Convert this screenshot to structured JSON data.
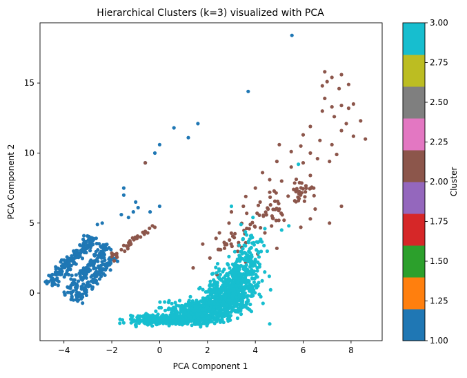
{
  "chart_data": {
    "type": "scatter",
    "title": "Hierarchical Clusters (k=3) visualized with PCA",
    "xlabel": "PCA Component 1",
    "ylabel": "PCA Component 2",
    "xlim": [
      -5.0,
      9.3
    ],
    "ylim": [
      -3.4,
      19.3
    ],
    "xticks": [
      -4,
      -2,
      0,
      2,
      4,
      6,
      8
    ],
    "yticks": [
      0,
      5,
      10,
      15
    ],
    "xtick_labels": [
      "−4",
      "−2",
      "0",
      "2",
      "4",
      "6",
      "8"
    ],
    "ytick_labels": [
      "0",
      "5",
      "10",
      "15"
    ],
    "grid": false,
    "series": [
      {
        "cluster": 1,
        "color": "#1f77b4",
        "points": [
          [
            5.53,
            18.4
          ],
          [
            3.7,
            14.4
          ],
          [
            1.6,
            12.1
          ],
          [
            0.6,
            11.8
          ],
          [
            1.2,
            11.1
          ],
          [
            0.0,
            10.6
          ],
          [
            -0.2,
            10.0
          ],
          [
            -0.6,
            9.3
          ],
          [
            -1.5,
            7.5
          ],
          [
            -1.5,
            7.0
          ],
          [
            -1.0,
            6.5
          ],
          [
            -0.9,
            6.1
          ],
          [
            0.0,
            6.2
          ],
          [
            -1.1,
            5.8
          ],
          [
            -1.6,
            5.6
          ],
          [
            -1.3,
            5.4
          ],
          [
            -0.4,
            5.8
          ],
          [
            -2.4,
            5.0
          ],
          [
            -2.6,
            4.9
          ]
        ],
        "stripes": [
          {
            "from": [
              -4.6,
              0.6
            ],
            "to": [
              -2.8,
              4.0
            ],
            "n": 170,
            "spread": 0.16
          },
          {
            "from": [
              -3.9,
              -0.2
            ],
            "to": [
              -2.2,
              3.5
            ],
            "n": 120,
            "spread": 0.15
          },
          {
            "from": [
              -3.5,
              -0.6
            ],
            "to": [
              -2.0,
              2.6
            ],
            "n": 110,
            "spread": 0.14
          }
        ]
      },
      {
        "cluster": 2,
        "color": "#8c564b",
        "points": [
          [
            6.9,
            15.8
          ],
          [
            7.2,
            15.4
          ],
          [
            7.6,
            15.6
          ],
          [
            7.0,
            15.1
          ],
          [
            6.8,
            14.8
          ],
          [
            7.5,
            14.6
          ],
          [
            7.9,
            14.9
          ],
          [
            6.9,
            13.9
          ],
          [
            7.2,
            13.3
          ],
          [
            6.8,
            13.0
          ],
          [
            7.6,
            13.4
          ],
          [
            7.9,
            13.2
          ],
          [
            8.1,
            13.5
          ],
          [
            7.3,
            12.6
          ],
          [
            7.8,
            12.1
          ],
          [
            8.4,
            12.3
          ],
          [
            6.3,
            11.9
          ],
          [
            7.6,
            11.6
          ],
          [
            8.1,
            11.2
          ],
          [
            8.6,
            11.0
          ],
          [
            6.0,
            11.3
          ],
          [
            6.7,
            10.9
          ],
          [
            7.2,
            10.6
          ],
          [
            5.9,
            10.5
          ],
          [
            5.5,
            10.1
          ],
          [
            5.0,
            10.6
          ],
          [
            6.3,
            10.0
          ],
          [
            6.6,
            9.6
          ],
          [
            7.4,
            9.9
          ],
          [
            7.1,
            9.4
          ],
          [
            5.5,
            9.0
          ],
          [
            4.9,
            9.4
          ],
          [
            6.0,
            9.3
          ],
          [
            4.3,
            8.6
          ],
          [
            4.6,
            8.1
          ],
          [
            5.1,
            8.0
          ],
          [
            6.3,
            8.4
          ],
          [
            4.0,
            7.5
          ],
          [
            3.6,
            6.9
          ],
          [
            4.6,
            7.2
          ],
          [
            5.6,
            7.4
          ],
          [
            3.5,
            6.2
          ],
          [
            4.2,
            6.5
          ],
          [
            5.0,
            6.0
          ],
          [
            5.8,
            6.6
          ],
          [
            6.5,
            6.0
          ],
          [
            7.6,
            6.2
          ],
          [
            3.0,
            5.8
          ],
          [
            4.7,
            5.5
          ],
          [
            5.2,
            5.2
          ],
          [
            6.3,
            5.3
          ],
          [
            7.1,
            5.0
          ],
          [
            2.9,
            5.0
          ],
          [
            4.4,
            4.3
          ],
          [
            5.9,
            4.7
          ],
          [
            2.5,
            4.3
          ],
          [
            3.3,
            3.6
          ],
          [
            4.9,
            3.2
          ],
          [
            1.8,
            3.5
          ],
          [
            2.1,
            2.5
          ],
          [
            3.6,
            2.2
          ],
          [
            1.4,
            1.8
          ],
          [
            2.4,
            1.3
          ],
          [
            3.3,
            1.0
          ],
          [
            4.1,
            2.8
          ],
          [
            -0.2,
            4.7
          ],
          [
            -0.5,
            4.3
          ],
          [
            -0.8,
            4.0
          ],
          [
            -0.3,
            4.8
          ],
          [
            -1.0,
            3.9
          ],
          [
            -1.2,
            3.5
          ],
          [
            -1.5,
            3.4
          ],
          [
            -1.6,
            3.1
          ],
          [
            -1.8,
            2.7
          ],
          [
            -1.9,
            2.3
          ],
          [
            -2.0,
            2.6
          ],
          [
            -0.6,
            9.3
          ],
          [
            -0.6,
            4.4
          ]
        ],
        "stripes": [
          {
            "from": [
              2.6,
              3.0
            ],
            "to": [
              6.2,
              7.8
            ],
            "n": 90,
            "spread": 0.35
          },
          {
            "from": [
              -2.0,
              2.5
            ],
            "to": [
              -0.3,
              4.8
            ],
            "n": 22,
            "spread": 0.1
          }
        ]
      },
      {
        "cluster": 3,
        "color": "#17becf",
        "points": [
          [
            4.6,
            -2.2
          ],
          [
            5.8,
            9.2
          ],
          [
            3.0,
            6.2
          ],
          [
            4.4,
            4.6
          ],
          [
            5.4,
            4.8
          ],
          [
            5.1,
            4.5
          ],
          [
            3.9,
            5.4
          ],
          [
            3.4,
            4.9
          ]
        ],
        "blobs": [
          {
            "cx": 0.6,
            "cy": -1.9,
            "rx": 1.5,
            "ry": 0.32,
            "n": 450
          },
          {
            "cx": 1.8,
            "cy": -1.2,
            "rx": 1.2,
            "ry": 0.55,
            "n": 420
          },
          {
            "cx": 2.8,
            "cy": -0.3,
            "rx": 0.9,
            "ry": 0.8,
            "n": 320
          },
          {
            "cx": 3.2,
            "cy": 0.9,
            "rx": 0.8,
            "ry": 0.9,
            "n": 230
          },
          {
            "cx": 3.7,
            "cy": 2.3,
            "rx": 0.5,
            "ry": 0.9,
            "n": 90
          },
          {
            "cx": 3.8,
            "cy": 3.7,
            "rx": 0.4,
            "ry": 0.6,
            "n": 25
          }
        ]
      }
    ],
    "colorbar": {
      "label": "Cluster",
      "range": [
        1.0,
        3.0
      ],
      "ticks": [
        1.0,
        1.25,
        1.5,
        1.75,
        2.0,
        2.25,
        2.5,
        2.75,
        3.0
      ],
      "tick_labels": [
        "1.00",
        "1.25",
        "1.50",
        "1.75",
        "2.00",
        "2.25",
        "2.50",
        "2.75",
        "3.00"
      ],
      "colors": [
        "#1f77b4",
        "#ff7f0e",
        "#2ca02c",
        "#d62728",
        "#9467bd",
        "#8c564b",
        "#e377c2",
        "#7f7f7f",
        "#bcbd22",
        "#17becf"
      ]
    }
  }
}
